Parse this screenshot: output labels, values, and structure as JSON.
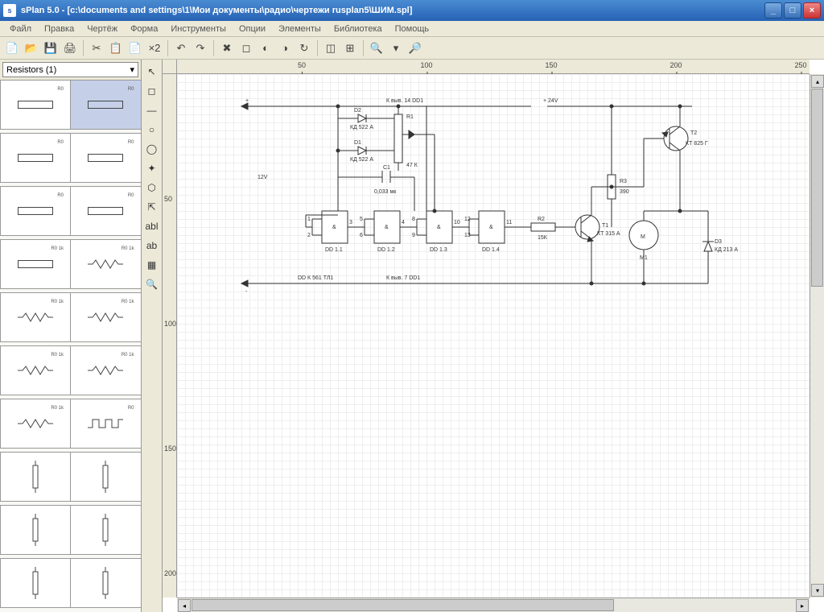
{
  "window": {
    "title": "sPlan 5.0 - [c:\\documents and settings\\1\\Мои документы\\радио\\чертежи rusplan5\\ШИМ.spl]"
  },
  "menu": [
    "Файл",
    "Правка",
    "Чертёж",
    "Форма",
    "Инструменты",
    "Опции",
    "Элементы",
    "Библиотека",
    "Помощь"
  ],
  "toolbar_icons": [
    "📄",
    "📂",
    "💾",
    "🖨",
    "|",
    "✂",
    "📋",
    "📄",
    "×2",
    "|",
    "↶",
    "↷",
    "|",
    "✖",
    "◻",
    "◐",
    "◑",
    "↻",
    "|",
    "◫",
    "⊞",
    "|",
    "🔍",
    "▾",
    "🔎"
  ],
  "component_selector": {
    "label": "Resistors (1)"
  },
  "side_tools": [
    "↖",
    "◻",
    "—",
    "○",
    "◯",
    "✦",
    "⬡",
    "⇱",
    "abl",
    "ab",
    "▦",
    "🔍"
  ],
  "ruler_h": [
    50,
    100,
    150,
    200,
    250
  ],
  "ruler_v": [
    50,
    100,
    150,
    200
  ],
  "schematic": {
    "labels": {
      "plus": "+",
      "minus": "-",
      "v12": "12V",
      "v24": "+ 24V",
      "top_note": "К выв. 14 DD1",
      "bot_note": "К выв. 7 DD1",
      "dd_k": "DD К 561 ТЛ1",
      "d2a": "D2",
      "d2b": "КД 522 А",
      "d1a": "D1",
      "d1b": "КД 522 А",
      "r1a": "R1",
      "r1b": "47 К",
      "c1a": "C1",
      "c1b": "0,033 мк",
      "g1": "&",
      "g2": "&",
      "g3": "&",
      "g4": "&",
      "dd11": "DD 1.1",
      "dd12": "DD 1.2",
      "dd13": "DD 1.3",
      "dd14": "DD 1.4",
      "p1": "1",
      "p2": "2",
      "p3": "3",
      "p4": "4",
      "p5": "5",
      "p6": "6",
      "p8": "8",
      "p9": "9",
      "p10": "10",
      "p12": "12",
      "p13": "13",
      "p11": "11",
      "r2a": "R2",
      "r2b": "15К",
      "t1a": "T1",
      "t1b": "КТ 315 А",
      "r3a": "R3",
      "r3b": "390",
      "t2a": "T2",
      "t2b": "КТ 825 Г",
      "m": "M",
      "m1": "M1",
      "d3a": "D3",
      "d3b": "КД 213 А"
    },
    "colors": {
      "stroke": "#333",
      "wire": "#333",
      "bg": "#ffffff",
      "grid": "#eeeeee"
    }
  },
  "parts": [
    {
      "label": "R0",
      "type": "rect"
    },
    {
      "label": "R0",
      "type": "rect",
      "selected": true
    },
    {
      "label": "R0",
      "type": "rect-diag"
    },
    {
      "label": "R0",
      "type": "rect-strike"
    },
    {
      "label": "R0",
      "type": "rect-diag"
    },
    {
      "label": "R0",
      "type": "rect-diag"
    },
    {
      "label": "R0 1k",
      "type": "rect-strike"
    },
    {
      "label": "R0 1k",
      "type": "zig"
    },
    {
      "label": "R0 1k",
      "type": "zig"
    },
    {
      "label": "R0 1k",
      "type": "zig"
    },
    {
      "label": "R0 1k",
      "type": "zig"
    },
    {
      "label": "R0 1k",
      "type": "zig"
    },
    {
      "label": "R0 1k",
      "type": "zig"
    },
    {
      "label": "R0",
      "type": "pulse"
    },
    {
      "label": "",
      "type": "v-rect"
    },
    {
      "label": "",
      "type": "v-rect"
    },
    {
      "label": "",
      "type": "v-rect"
    },
    {
      "label": "",
      "type": "v-rect"
    },
    {
      "label": "",
      "type": "v-rect"
    },
    {
      "label": "",
      "type": "v-rect"
    }
  ]
}
